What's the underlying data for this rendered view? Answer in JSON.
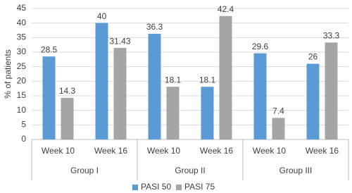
{
  "chart_data": {
    "type": "bar",
    "y_label": "% of patients",
    "categories": [
      "Week 10",
      "Week 16",
      "Week 10",
      "Week 16",
      "Week 10",
      "Week 16"
    ],
    "groups": [
      "Group I",
      "Group II",
      "Group III"
    ],
    "series": [
      {
        "name": "PASI 50",
        "color": "#5b9bd5",
        "values": [
          28.5,
          40,
          36.3,
          18.1,
          29.6,
          26
        ]
      },
      {
        "name": "PASI 75",
        "color": "#a5a5a5",
        "values": [
          14.3,
          31.43,
          18.1,
          42.4,
          7.4,
          33.3
        ]
      }
    ],
    "ylim": [
      0,
      45
    ],
    "yticks": [
      0,
      5,
      10,
      15,
      20,
      25,
      30,
      35,
      40,
      45
    ],
    "grid": true,
    "legend": "bottom"
  }
}
